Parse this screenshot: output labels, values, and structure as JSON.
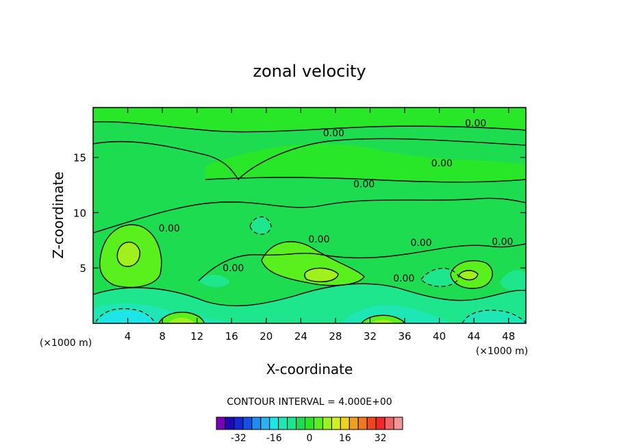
{
  "chart_data": {
    "type": "contour",
    "title": "zonal velocity",
    "xlabel": "X-coordinate",
    "ylabel": "Z-coordinate",
    "x_unit_label": "(×1000 m)",
    "xlim": [
      0,
      50
    ],
    "ylim": [
      0,
      19.5
    ],
    "x_ticks": [
      4,
      8,
      12,
      16,
      20,
      24,
      28,
      32,
      36,
      40,
      44,
      48
    ],
    "y_ticks": [
      5,
      10,
      15
    ],
    "contour_interval_text": "CONTOUR INTERVAL = 4.000E+00",
    "contour_labels": [
      {
        "text": "0.00",
        "x": 27.8,
        "y": 17.2
      },
      {
        "text": "0.00",
        "x": 44.2,
        "y": 18.1
      },
      {
        "text": "0.00",
        "x": 40.3,
        "y": 14.5
      },
      {
        "text": "0.00",
        "x": 31.3,
        "y": 12.6
      },
      {
        "text": "0.00",
        "x": 8.8,
        "y": 8.6
      },
      {
        "text": "0.00",
        "x": 26.1,
        "y": 7.6
      },
      {
        "text": "0.00",
        "x": 37.9,
        "y": 7.3
      },
      {
        "text": "0.00",
        "x": 47.3,
        "y": 7.4
      },
      {
        "text": "0.00",
        "x": 16.2,
        "y": 5.0
      },
      {
        "text": "0.00",
        "x": 35.9,
        "y": 4.1
      }
    ],
    "colorbar": {
      "colors": [
        "#7b00b4",
        "#1e0ab4",
        "#1428d2",
        "#1450e6",
        "#1e8cf0",
        "#28b4f0",
        "#1ee6e6",
        "#1ee6b4",
        "#1ee68c",
        "#1edc50",
        "#28e628",
        "#5af01e",
        "#a0f01e",
        "#d2f01e",
        "#f0d21e",
        "#f0a01e",
        "#f0781e",
        "#f0461e",
        "#f02828",
        "#f06464",
        "#f09696"
      ],
      "tick_labels": [
        "-32",
        "-16",
        "0",
        "16",
        "32"
      ]
    }
  }
}
